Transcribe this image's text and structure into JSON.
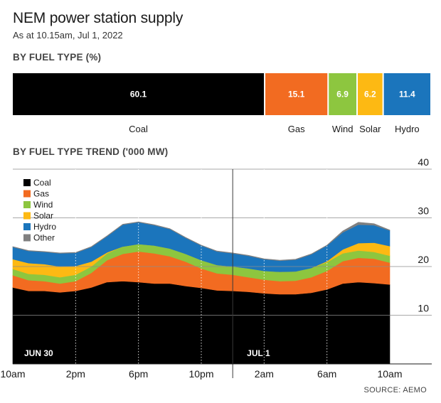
{
  "header": {
    "title": "NEM power station supply",
    "subtitle": "As at 10.15am, Jul 1, 2022"
  },
  "source": "SOURCE: AEMO",
  "colors": {
    "Coal": "#000000",
    "Gas": "#f26b21",
    "Wind": "#8dc63f",
    "Solar": "#fdb913",
    "Hydro": "#1b75bc",
    "Other": "#808080"
  },
  "chart_data": [
    {
      "type": "bar",
      "title": "BY FUEL TYPE (%)",
      "stacked": true,
      "orientation": "horizontal",
      "categories": [
        "Coal",
        "Gas",
        "Wind",
        "Solar",
        "Hydro"
      ],
      "values": [
        60.1,
        15.1,
        6.9,
        6.2,
        11.4
      ],
      "value_labels": [
        "60.1",
        "15.1",
        "6.9",
        "6.2",
        "11.4"
      ]
    },
    {
      "type": "area",
      "stacked": true,
      "title": "BY FUEL TYPE TREND ('000 MW)",
      "ylim": [
        0,
        40
      ],
      "yticks": [
        10,
        20,
        30,
        40
      ],
      "grid": true,
      "legend_position": "top-left",
      "x_hours": [
        0,
        1,
        2,
        3,
        4,
        5,
        6,
        7,
        8,
        9,
        10,
        11,
        12,
        13,
        14,
        15,
        16,
        17,
        18,
        19,
        20,
        21,
        22,
        23,
        24
      ],
      "xticks": [
        {
          "x": 0,
          "label": "10am"
        },
        {
          "x": 4,
          "label": "2pm"
        },
        {
          "x": 8,
          "label": "6pm"
        },
        {
          "x": 12,
          "label": "10pm"
        },
        {
          "x": 16,
          "label": "2am"
        },
        {
          "x": 20,
          "label": "6am"
        },
        {
          "x": 24,
          "label": "10am"
        }
      ],
      "day_markers": [
        {
          "x": 0,
          "label": "JUN 30"
        },
        {
          "x": 14,
          "label": "JUL 1"
        }
      ],
      "series": [
        {
          "name": "Coal",
          "values": [
            15.7,
            15.0,
            15.0,
            14.7,
            15.0,
            15.7,
            16.8,
            17.0,
            16.8,
            16.5,
            16.5,
            16.0,
            15.6,
            15.1,
            15.0,
            14.8,
            14.5,
            14.3,
            14.3,
            14.6,
            15.3,
            16.5,
            16.8,
            16.6,
            16.3
          ]
        },
        {
          "name": "Gas",
          "values": [
            2.5,
            2.2,
            2.0,
            1.8,
            2.0,
            3.0,
            4.5,
            5.6,
            6.3,
            6.2,
            5.6,
            5.0,
            4.0,
            3.5,
            3.3,
            3.0,
            2.8,
            2.7,
            2.8,
            3.2,
            3.8,
            4.6,
            5.0,
            5.0,
            4.5
          ]
        },
        {
          "name": "Wind",
          "values": [
            1.3,
            1.3,
            1.3,
            1.3,
            1.3,
            1.3,
            1.4,
            1.5,
            1.5,
            1.6,
            1.6,
            1.6,
            1.7,
            1.7,
            1.7,
            1.8,
            1.8,
            1.9,
            1.9,
            1.9,
            1.8,
            1.6,
            1.5,
            1.4,
            1.4
          ]
        },
        {
          "name": "Solar",
          "values": [
            2.0,
            2.2,
            2.2,
            2.2,
            1.8,
            1.0,
            0.2,
            0.0,
            0.0,
            0.0,
            0.0,
            0.0,
            0.0,
            0.0,
            0.0,
            0.0,
            0.0,
            0.0,
            0.0,
            0.0,
            0.2,
            0.8,
            1.5,
            1.9,
            2.0
          ]
        },
        {
          "name": "Hydro",
          "values": [
            2.5,
            2.5,
            2.5,
            2.7,
            2.7,
            3.0,
            3.3,
            4.5,
            4.5,
            4.2,
            4.0,
            3.3,
            3.0,
            2.8,
            2.7,
            2.6,
            2.4,
            2.3,
            2.4,
            2.8,
            3.2,
            3.5,
            3.8,
            3.6,
            3.2
          ]
        },
        {
          "name": "Other",
          "values": [
            0.1,
            0.1,
            0.1,
            0.1,
            0.1,
            0.1,
            0.1,
            0.1,
            0.1,
            0.1,
            0.1,
            0.1,
            0.1,
            0.1,
            0.1,
            0.1,
            0.1,
            0.1,
            0.1,
            0.1,
            0.1,
            0.3,
            0.5,
            0.3,
            0.1
          ]
        }
      ]
    }
  ]
}
